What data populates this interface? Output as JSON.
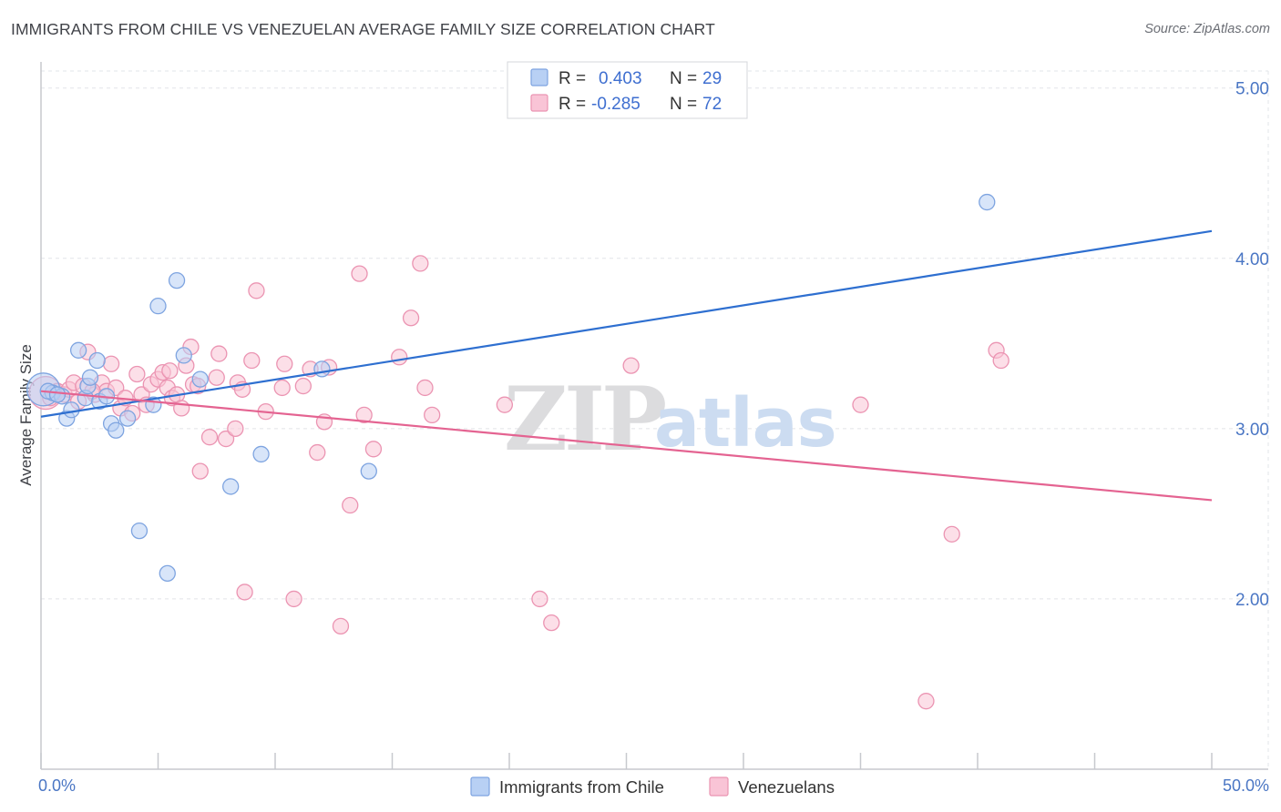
{
  "header": {
    "title": "IMMIGRANTS FROM CHILE VS VENEZUELAN AVERAGE FAMILY SIZE CORRELATION CHART",
    "source": "Source: ZipAtlas.com"
  },
  "watermark": {
    "zip": "ZIP",
    "atlas": "atlas"
  },
  "legend": {
    "rows": [
      {
        "r_label": "R = ",
        "r_value": "0.403",
        "n_label": "N = ",
        "n_value": "29"
      },
      {
        "r_label": "R = ",
        "r_value": "-0.285",
        "n_label": "N = ",
        "n_value": "72"
      }
    ]
  },
  "colors": {
    "chile_fill": "#b8d0f4",
    "chile_stroke": "#7ea4e0",
    "chile_line": "#2e6fd0",
    "ven_fill": "#f9c4d6",
    "ven_stroke": "#eb94b2",
    "ven_line": "#e46391",
    "grid": "#e2e4e8",
    "axis": "#c7c9ce"
  },
  "chart_data": {
    "type": "scatter",
    "title": "IMMIGRANTS FROM CHILE VS VENEZUELAN AVERAGE FAMILY SIZE CORRELATION CHART",
    "xlabel": "",
    "ylabel": "Average Family Size",
    "xlim": [
      0,
      50
    ],
    "ylim": [
      1.0,
      5.1
    ],
    "x_tick_labels": [
      "0.0%",
      "50.0%"
    ],
    "y_ticks": [
      2.0,
      3.0,
      4.0,
      5.0
    ],
    "y_tick_labels": [
      "2.00",
      "3.00",
      "4.00",
      "5.00"
    ],
    "grid": "horizontal dashed",
    "legend_position": "top-center",
    "series": [
      {
        "name": "Immigrants from Chile",
        "color": "#b8d0f4",
        "trend": {
          "x": [
            0,
            50
          ],
          "y": [
            3.07,
            4.16
          ]
        },
        "points": [
          {
            "x": 0.1,
            "y": 3.23,
            "big": true
          },
          {
            "x": 0.5,
            "y": 3.21
          },
          {
            "x": 0.9,
            "y": 3.19
          },
          {
            "x": 1.1,
            "y": 3.06
          },
          {
            "x": 1.3,
            "y": 3.11
          },
          {
            "x": 1.6,
            "y": 3.46
          },
          {
            "x": 1.9,
            "y": 3.18
          },
          {
            "x": 2.0,
            "y": 3.25
          },
          {
            "x": 2.1,
            "y": 3.3
          },
          {
            "x": 2.4,
            "y": 3.4
          },
          {
            "x": 2.5,
            "y": 3.16
          },
          {
            "x": 2.8,
            "y": 3.19
          },
          {
            "x": 3.0,
            "y": 3.03
          },
          {
            "x": 3.2,
            "y": 2.99
          },
          {
            "x": 3.7,
            "y": 3.06
          },
          {
            "x": 4.2,
            "y": 2.4
          },
          {
            "x": 4.8,
            "y": 3.14
          },
          {
            "x": 5.0,
            "y": 3.72
          },
          {
            "x": 5.4,
            "y": 2.15
          },
          {
            "x": 5.8,
            "y": 3.87
          },
          {
            "x": 6.1,
            "y": 3.43
          },
          {
            "x": 6.8,
            "y": 3.29
          },
          {
            "x": 8.1,
            "y": 2.66
          },
          {
            "x": 9.4,
            "y": 2.85
          },
          {
            "x": 12.0,
            "y": 3.35
          },
          {
            "x": 14.0,
            "y": 2.75
          },
          {
            "x": 40.4,
            "y": 4.33
          },
          {
            "x": 0.3,
            "y": 3.22
          },
          {
            "x": 0.7,
            "y": 3.2
          }
        ]
      },
      {
        "name": "Venezuelans",
        "color": "#f9c4d6",
        "trend": {
          "x": [
            0,
            50
          ],
          "y": [
            3.22,
            2.58
          ]
        },
        "points": [
          {
            "x": 0.2,
            "y": 3.21,
            "big": true
          },
          {
            "x": 0.4,
            "y": 3.18
          },
          {
            "x": 0.7,
            "y": 3.22
          },
          {
            "x": 1.0,
            "y": 3.2
          },
          {
            "x": 1.2,
            "y": 3.23
          },
          {
            "x": 1.4,
            "y": 3.27
          },
          {
            "x": 1.8,
            "y": 3.25
          },
          {
            "x": 2.0,
            "y": 3.45
          },
          {
            "x": 2.3,
            "y": 3.2
          },
          {
            "x": 2.6,
            "y": 3.27
          },
          {
            "x": 2.8,
            "y": 3.22
          },
          {
            "x": 3.0,
            "y": 3.38
          },
          {
            "x": 3.2,
            "y": 3.24
          },
          {
            "x": 3.4,
            "y": 3.12
          },
          {
            "x": 3.6,
            "y": 3.18
          },
          {
            "x": 3.9,
            "y": 3.09
          },
          {
            "x": 4.1,
            "y": 3.32
          },
          {
            "x": 4.3,
            "y": 3.2
          },
          {
            "x": 4.5,
            "y": 3.14
          },
          {
            "x": 4.7,
            "y": 3.26
          },
          {
            "x": 5.0,
            "y": 3.29
          },
          {
            "x": 5.2,
            "y": 3.33
          },
          {
            "x": 5.4,
            "y": 3.24
          },
          {
            "x": 5.6,
            "y": 3.18
          },
          {
            "x": 5.8,
            "y": 3.2
          },
          {
            "x": 6.0,
            "y": 3.12
          },
          {
            "x": 6.2,
            "y": 3.37
          },
          {
            "x": 6.4,
            "y": 3.48
          },
          {
            "x": 6.5,
            "y": 3.26
          },
          {
            "x": 6.7,
            "y": 3.25
          },
          {
            "x": 6.8,
            "y": 2.75
          },
          {
            "x": 7.2,
            "y": 2.95
          },
          {
            "x": 7.5,
            "y": 3.3
          },
          {
            "x": 7.6,
            "y": 3.44
          },
          {
            "x": 7.9,
            "y": 2.94
          },
          {
            "x": 8.3,
            "y": 3.0
          },
          {
            "x": 8.4,
            "y": 3.27
          },
          {
            "x": 8.6,
            "y": 3.23
          },
          {
            "x": 8.7,
            "y": 2.04
          },
          {
            "x": 9.0,
            "y": 3.4
          },
          {
            "x": 9.2,
            "y": 3.81
          },
          {
            "x": 9.6,
            "y": 3.1
          },
          {
            "x": 10.3,
            "y": 3.24
          },
          {
            "x": 10.4,
            "y": 3.38
          },
          {
            "x": 10.8,
            "y": 2.0
          },
          {
            "x": 11.2,
            "y": 3.25
          },
          {
            "x": 11.5,
            "y": 3.35
          },
          {
            "x": 11.8,
            "y": 2.86
          },
          {
            "x": 12.1,
            "y": 3.04
          },
          {
            "x": 12.3,
            "y": 3.36
          },
          {
            "x": 12.8,
            "y": 1.84
          },
          {
            "x": 13.2,
            "y": 2.55
          },
          {
            "x": 13.6,
            "y": 3.91
          },
          {
            "x": 13.8,
            "y": 3.08
          },
          {
            "x": 14.2,
            "y": 2.88
          },
          {
            "x": 15.3,
            "y": 3.42
          },
          {
            "x": 15.8,
            "y": 3.65
          },
          {
            "x": 16.2,
            "y": 3.97
          },
          {
            "x": 16.4,
            "y": 3.24
          },
          {
            "x": 16.7,
            "y": 3.08
          },
          {
            "x": 19.8,
            "y": 3.14
          },
          {
            "x": 21.3,
            "y": 2.0
          },
          {
            "x": 21.8,
            "y": 1.86
          },
          {
            "x": 25.2,
            "y": 3.37
          },
          {
            "x": 35.0,
            "y": 3.14
          },
          {
            "x": 37.8,
            "y": 1.4
          },
          {
            "x": 38.9,
            "y": 2.38
          },
          {
            "x": 40.8,
            "y": 3.46
          },
          {
            "x": 41.0,
            "y": 3.4
          },
          {
            "x": 1.6,
            "y": 3.16
          },
          {
            "x": 2.2,
            "y": 3.22
          },
          {
            "x": 5.5,
            "y": 3.34
          }
        ]
      }
    ]
  },
  "bottom_legend": {
    "items": [
      {
        "label": "Immigrants from Chile"
      },
      {
        "label": "Venezuelans"
      }
    ]
  }
}
